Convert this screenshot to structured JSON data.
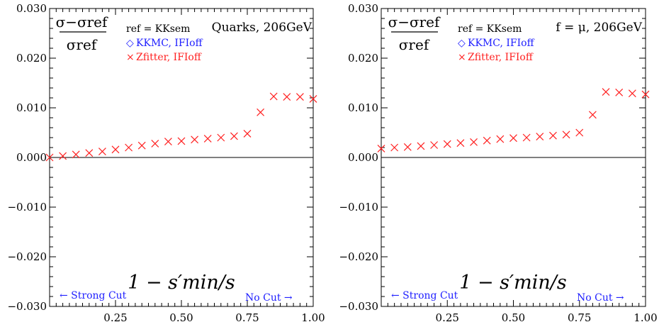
{
  "chart_data": [
    {
      "type": "scatter",
      "title": "Quarks, 206GeV",
      "xlabel": "1 − s′min/s",
      "ylabel_numerator": "σ−σref",
      "ylabel_denominator": "σref",
      "legend_header": "ref = KKsem",
      "legend_entries": [
        {
          "symbol": "diamond",
          "label": "KKMC, IFIoff",
          "color": "#2020ff"
        },
        {
          "symbol": "cross",
          "label": "Zfitter, IFIoff",
          "color": "#ff2020"
        }
      ],
      "annotations": {
        "left": "← Strong Cut",
        "right": "No Cut →"
      },
      "xlim": [
        0,
        1
      ],
      "ylim": [
        -0.03,
        0.03
      ],
      "xticks": [
        "0.25",
        "0.50",
        "0.75",
        "1.00"
      ],
      "yticks": [
        "−0.030",
        "−0.020",
        "−0.010",
        "0.000",
        "0.010",
        "0.020",
        "0.030"
      ],
      "series": [
        {
          "name": "Zfitter, IFIoff",
          "color": "#ff2020",
          "x": [
            0.0,
            0.05,
            0.1,
            0.15,
            0.2,
            0.25,
            0.3,
            0.35,
            0.4,
            0.45,
            0.5,
            0.55,
            0.6,
            0.65,
            0.7,
            0.75,
            0.8,
            0.85,
            0.9,
            0.95,
            1.0
          ],
          "y": [
            0.0,
            0.0003,
            0.0006,
            0.0009,
            0.0012,
            0.0016,
            0.002,
            0.0024,
            0.0028,
            0.0032,
            0.0033,
            0.0036,
            0.0038,
            0.004,
            0.0043,
            0.0048,
            0.0091,
            0.0123,
            0.0122,
            0.0122,
            0.0118
          ]
        }
      ]
    },
    {
      "type": "scatter",
      "title": "f = μ, 206GeV",
      "xlabel": "1 − s′min/s",
      "ylabel_numerator": "σ−σref",
      "ylabel_denominator": "σref",
      "legend_header": "ref = KKsem",
      "legend_entries": [
        {
          "symbol": "diamond",
          "label": "KKMC, IFIoff",
          "color": "#2020ff"
        },
        {
          "symbol": "cross",
          "label": "Zfitter, IFIoff",
          "color": "#ff2020"
        }
      ],
      "annotations": {
        "left": "← Strong Cut",
        "right": "No Cut →"
      },
      "xlim": [
        0,
        1
      ],
      "ylim": [
        -0.03,
        0.03
      ],
      "xticks": [
        "0.25",
        "0.50",
        "0.75",
        "1.00"
      ],
      "yticks": [
        "−0.030",
        "−0.020",
        "−0.010",
        "0.000",
        "0.010",
        "0.020",
        "0.030"
      ],
      "series": [
        {
          "name": "Zfitter, IFIoff",
          "color": "#ff2020",
          "x": [
            0.0,
            0.05,
            0.1,
            0.15,
            0.2,
            0.25,
            0.3,
            0.35,
            0.4,
            0.45,
            0.5,
            0.55,
            0.6,
            0.65,
            0.7,
            0.75,
            0.8,
            0.85,
            0.9,
            0.95,
            1.0
          ],
          "y": [
            0.0018,
            0.002,
            0.0021,
            0.0023,
            0.0025,
            0.0027,
            0.0029,
            0.0031,
            0.0034,
            0.0037,
            0.0039,
            0.004,
            0.0042,
            0.0044,
            0.0046,
            0.005,
            0.0086,
            0.0132,
            0.0131,
            0.0129,
            0.0127
          ]
        }
      ]
    }
  ]
}
